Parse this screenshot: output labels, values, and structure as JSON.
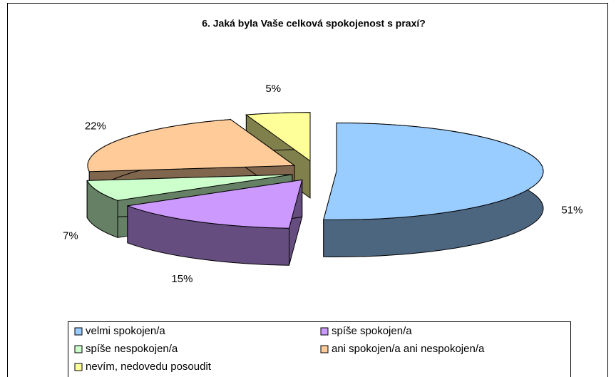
{
  "chart_data": {
    "type": "pie3d",
    "title": "6. Jaká byla Vaše celková spokojenost s praxí?",
    "categories": [
      "velmi spokojen/a",
      "spíše spokojen/a",
      "spíše nespokojen/a",
      "ani spokojen/a ani nespokojen/a",
      "nevím, nedovedu posoudit"
    ],
    "values": [
      51,
      15,
      7,
      22,
      5
    ],
    "value_labels": [
      "51%",
      "15%",
      "7%",
      "22%",
      "5%"
    ],
    "colors": [
      "#99ccff",
      "#cc99ff",
      "#ccffcc",
      "#ffcc99",
      "#ffff99"
    ],
    "legend": "bottom"
  }
}
